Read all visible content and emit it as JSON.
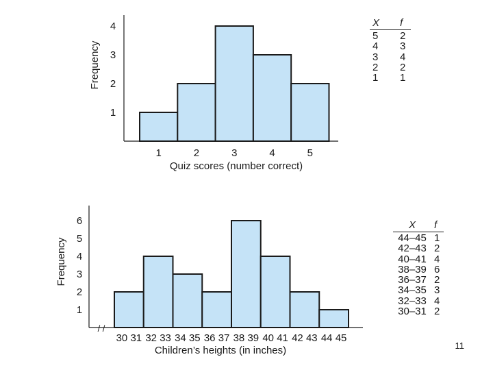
{
  "chart_data": [
    {
      "type": "bar",
      "xlabel": "Quiz scores (number correct)",
      "ylabel": "Frequency",
      "categories": [
        "1",
        "2",
        "3",
        "4",
        "5"
      ],
      "values": [
        1,
        2,
        4,
        3,
        2
      ],
      "yticks": [
        "1",
        "2",
        "3",
        "4"
      ],
      "ylim": [
        0,
        4
      ],
      "bar_color": "#c5e3f7",
      "table": {
        "header": [
          "X",
          "f"
        ],
        "rows": [
          [
            "5",
            "2"
          ],
          [
            "4",
            "3"
          ],
          [
            "3",
            "4"
          ],
          [
            "2",
            "2"
          ],
          [
            "1",
            "1"
          ]
        ]
      }
    },
    {
      "type": "bar",
      "xlabel": "Children’s heights (in inches)",
      "ylabel": "Frequency",
      "axis_break": "/ /",
      "categories": [
        "30 31",
        "32 33",
        "34 35",
        "36 37",
        "38 39",
        "40 41",
        "42 43",
        "44 45"
      ],
      "values": [
        2,
        4,
        3,
        2,
        6,
        4,
        2,
        1
      ],
      "yticks": [
        "1",
        "2",
        "3",
        "4",
        "5",
        "6"
      ],
      "ylim": [
        0,
        6
      ],
      "bar_color": "#c5e3f7",
      "table": {
        "header": [
          "X",
          "f"
        ],
        "rows": [
          [
            "44–45",
            "1"
          ],
          [
            "42–43",
            "2"
          ],
          [
            "40–41",
            "4"
          ],
          [
            "38–39",
            "6"
          ],
          [
            "36–37",
            "2"
          ],
          [
            "34–35",
            "3"
          ],
          [
            "32–33",
            "4"
          ],
          [
            "30–31",
            "2"
          ]
        ]
      }
    }
  ],
  "page_number": "11"
}
